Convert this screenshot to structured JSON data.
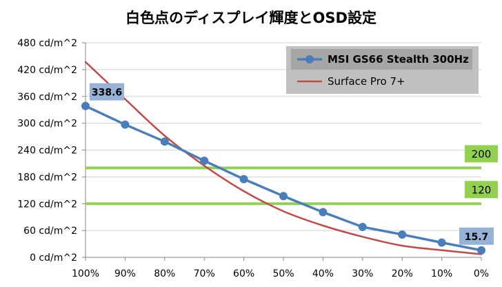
{
  "chart_data": {
    "type": "line",
    "title": "白色点のディスプレイ輝度とOSD設定",
    "xlabel": "",
    "ylabel": "",
    "categories": [
      "100%",
      "90%",
      "80%",
      "70%",
      "60%",
      "50%",
      "40%",
      "30%",
      "20%",
      "10%",
      "0%"
    ],
    "y_ticks": [
      "0 cd/m^2",
      "60 cd/m^2",
      "120 cd/m^2",
      "180 cd/m^2",
      "240 cd/m^2",
      "300 cd/m^2",
      "360 cd/m^2",
      "420 cd/m^2",
      "480 cd/m^2"
    ],
    "ylim": [
      0,
      480
    ],
    "y_step": 60,
    "grid": "horizontal",
    "legend_position": "top-right",
    "series": [
      {
        "name": "MSI GS66 Stealth 300Hz",
        "color": "#4a7ebb",
        "marker": "circle",
        "values": [
          338.6,
          297,
          259,
          216,
          175,
          137,
          101,
          68,
          51,
          33,
          15.7
        ]
      },
      {
        "name": "Surface Pro 7+",
        "color": "#be4b48",
        "marker": "none",
        "values": [
          437,
          354,
          272,
          205,
          148,
          103,
          71,
          46,
          26,
          16,
          7
        ]
      }
    ],
    "reference_lines": [
      {
        "value": 200,
        "label": "200",
        "color": "#92d050"
      },
      {
        "value": 120,
        "label": "120",
        "color": "#92d050"
      }
    ],
    "data_labels": [
      {
        "series": 0,
        "index": 0,
        "text": "338.6"
      },
      {
        "series": 0,
        "index": 10,
        "text": "15.7"
      }
    ]
  }
}
